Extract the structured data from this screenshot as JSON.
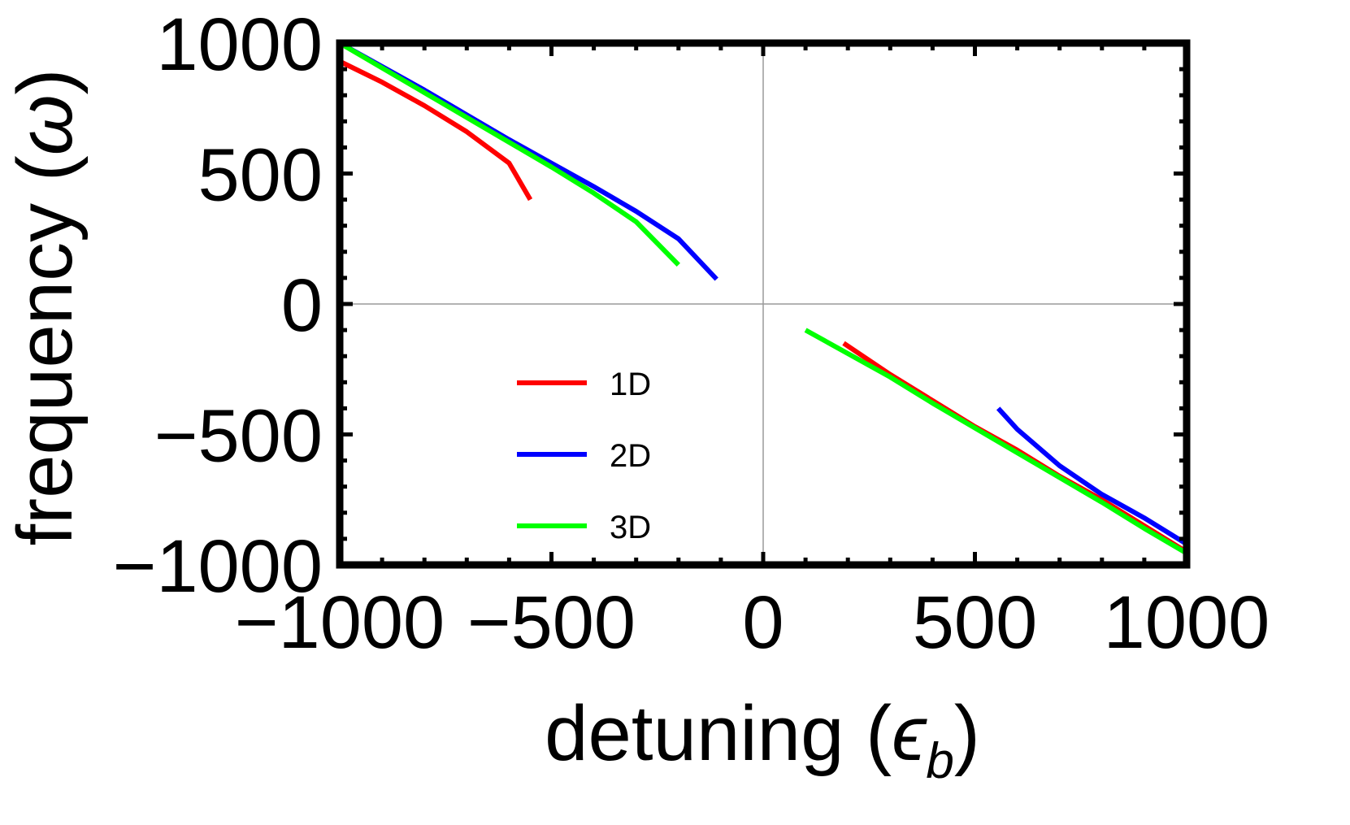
{
  "chart_data": {
    "type": "line",
    "xlabel": {
      "prefix": "detuning (",
      "symbol": "ϵ",
      "subscript": "b",
      "suffix": ")"
    },
    "ylabel": {
      "prefix": "frequency (",
      "symbol": "ω",
      "suffix": ")"
    },
    "xlim": [
      -1000,
      1000
    ],
    "ylim": [
      -1000,
      1000
    ],
    "xticks": [
      -1000,
      -500,
      0,
      500,
      1000
    ],
    "yticks": [
      -1000,
      -500,
      0,
      500,
      1000
    ],
    "xtick_labels": [
      "−1000",
      "−500",
      "0",
      "500",
      "1000"
    ],
    "ytick_labels": [
      "−1000",
      "−500",
      "0",
      "500",
      "1000"
    ],
    "grid": "zero lines only",
    "legend": "center-left",
    "series": [
      {
        "name": "1D",
        "color": "#ff0000",
        "segments": [
          {
            "x": [
              -1000,
              -900,
              -800,
              -700,
              -600,
              -550
            ],
            "y": [
              930,
              850,
              760,
              660,
              540,
              400
            ]
          },
          {
            "x": [
              190,
              300,
              400,
              500,
              600,
              700,
              800,
              900,
              1000
            ],
            "y": [
              -150,
              -270,
              -370,
              -470,
              -560,
              -660,
              -750,
              -850,
              -950
            ]
          }
        ]
      },
      {
        "name": "2D",
        "color": "#0000ff",
        "segments": [
          {
            "x": [
              -1000,
              -900,
              -800,
              -700,
              -600,
              -500,
              -400,
              -300,
              -200,
              -110
            ],
            "y": [
              1000,
              910,
              820,
              725,
              630,
              540,
              450,
              355,
              250,
              95
            ]
          },
          {
            "x": [
              555,
              600,
              700,
              800,
              900,
              1000
            ],
            "y": [
              -400,
              -480,
              -620,
              -730,
              -820,
              -920
            ]
          }
        ]
      },
      {
        "name": "3D",
        "color": "#00ff00",
        "segments": [
          {
            "x": [
              -1000,
              -900,
              -800,
              -700,
              -600,
              -500,
              -400,
              -300,
              -200
            ],
            "y": [
              1000,
              905,
              810,
              715,
              620,
              525,
              425,
              315,
              150
            ]
          },
          {
            "x": [
              100,
              200,
              300,
              400,
              500,
              600,
              700,
              800,
              900,
              1000
            ],
            "y": [
              -100,
              -190,
              -280,
              -380,
              -475,
              -570,
              -665,
              -760,
              -860,
              -955
            ]
          }
        ]
      }
    ]
  }
}
